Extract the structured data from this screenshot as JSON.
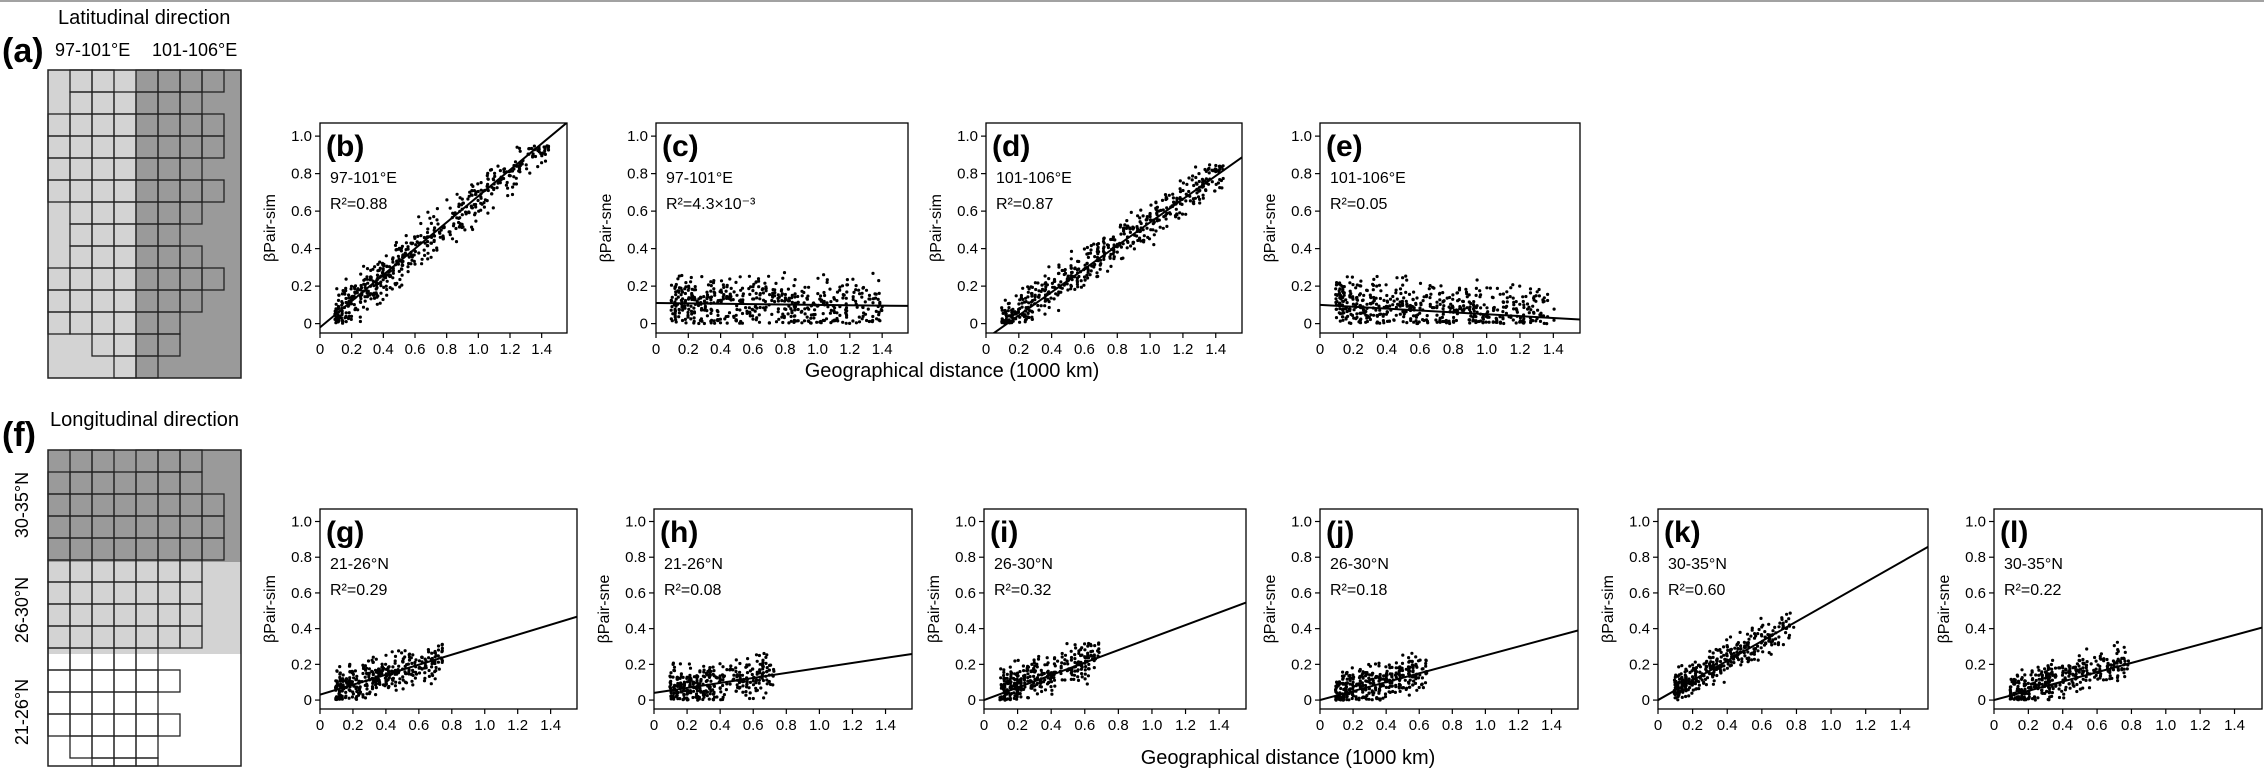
{
  "figure": {
    "xlabel": "Geographical distance (1000 km)",
    "section_a": {
      "letter": "(a)",
      "title": "Latitudinal direction",
      "band_labels": [
        "97-101°E",
        "101-106°E"
      ]
    },
    "section_f": {
      "letter": "(f)",
      "title": "Longitudinal direction",
      "band_labels": [
        "30-35°N",
        "26-30°N",
        "21-26°N"
      ]
    }
  },
  "chart_data": [
    {
      "id": "b",
      "type": "scatter",
      "letter": "(b)",
      "region": "97-101°E",
      "r2": "R²=0.88",
      "ylabel": "βPair-sim",
      "xlim": [
        0,
        1.5
      ],
      "ylim": [
        0,
        1.0
      ],
      "x_ticks": [
        "0",
        "0.2",
        "0.4",
        "0.6",
        "0.8",
        "1.0",
        "1.2",
        "1.4"
      ],
      "y_ticks": [
        "0",
        "0.2",
        "0.4",
        "0.6",
        "0.8",
        "1.0"
      ],
      "fit": {
        "intercept": -0.02,
        "slope": 0.7
      },
      "points": {
        "x_min": 0.1,
        "x_max": 1.45,
        "center_intercept": -0.02,
        "center_slope": 0.69,
        "spread": 0.09,
        "y_min": 0,
        "y_max": 0.95
      }
    },
    {
      "id": "c",
      "type": "scatter",
      "letter": "(c)",
      "region": "97-101°E",
      "r2": "R²=4.3×10⁻³",
      "ylabel": "βPair-sne",
      "xlim": [
        0,
        1.5
      ],
      "ylim": [
        0,
        1.0
      ],
      "x_ticks": [
        "0",
        "0.2",
        "0.4",
        "0.6",
        "0.8",
        "1.0",
        "1.2",
        "1.4"
      ],
      "y_ticks": [
        "0",
        "0.2",
        "0.4",
        "0.6",
        "0.8",
        "1.0"
      ],
      "fit": {
        "intercept": 0.11,
        "slope": -0.01
      },
      "points": {
        "x_min": 0.1,
        "x_max": 1.4,
        "center_intercept": 0.12,
        "center_slope": -0.02,
        "spread": 0.1,
        "y_min": 0,
        "y_max": 0.32
      }
    },
    {
      "id": "d",
      "type": "scatter",
      "letter": "(d)",
      "region": "101-106°E",
      "r2": "R²=0.87",
      "ylabel": "βPair-sim",
      "xlim": [
        0,
        1.5
      ],
      "ylim": [
        0,
        1.0
      ],
      "x_ticks": [
        "0",
        "0.2",
        "0.4",
        "0.6",
        "0.8",
        "1.0",
        "1.2",
        "1.4"
      ],
      "y_ticks": [
        "0",
        "0.2",
        "0.4",
        "0.6",
        "0.8",
        "1.0"
      ],
      "fit": {
        "intercept": -0.08,
        "slope": 0.62
      },
      "points": {
        "x_min": 0.1,
        "x_max": 1.45,
        "center_intercept": -0.06,
        "center_slope": 0.61,
        "spread": 0.08,
        "y_min": 0,
        "y_max": 0.85
      }
    },
    {
      "id": "e",
      "type": "scatter",
      "letter": "(e)",
      "region": "101-106°E",
      "r2": "R²=0.05",
      "ylabel": "βPair-sne",
      "xlim": [
        0,
        1.5
      ],
      "ylim": [
        0,
        1.0
      ],
      "x_ticks": [
        "0",
        "0.2",
        "0.4",
        "0.6",
        "0.8",
        "1.0",
        "1.2",
        "1.4"
      ],
      "y_ticks": [
        "0",
        "0.2",
        "0.4",
        "0.6",
        "0.8",
        "1.0"
      ],
      "fit": {
        "intercept": 0.1,
        "slope": -0.05
      },
      "points": {
        "x_min": 0.1,
        "x_max": 1.4,
        "center_intercept": 0.11,
        "center_slope": -0.04,
        "spread": 0.1,
        "y_min": 0,
        "y_max": 0.32
      }
    },
    {
      "id": "g",
      "type": "scatter",
      "letter": "(g)",
      "region": "21-26°N",
      "r2": "R²=0.29",
      "ylabel": "βPair-sim",
      "xlim": [
        0,
        1.5
      ],
      "ylim": [
        0,
        1.0
      ],
      "x_ticks": [
        "0",
        "0.2",
        "0.4",
        "0.6",
        "0.8",
        "1.0",
        "1.2",
        "1.4"
      ],
      "y_ticks": [
        "0",
        "0.2",
        "0.4",
        "0.6",
        "0.8",
        "1.0"
      ],
      "fit": {
        "intercept": 0.03,
        "slope": 0.28
      },
      "points": {
        "x_min": 0.1,
        "x_max": 0.75,
        "center_intercept": 0.04,
        "center_slope": 0.26,
        "spread": 0.08,
        "y_min": 0,
        "y_max": 0.33
      }
    },
    {
      "id": "h",
      "type": "scatter",
      "letter": "(h)",
      "region": "21-26°N",
      "r2": "R²=0.08",
      "ylabel": "βPair-sne",
      "xlim": [
        0,
        1.5
      ],
      "ylim": [
        0,
        1.0
      ],
      "x_ticks": [
        "0",
        "0.2",
        "0.4",
        "0.6",
        "0.8",
        "1.0",
        "1.2",
        "1.4"
      ],
      "y_ticks": [
        "0",
        "0.2",
        "0.4",
        "0.6",
        "0.8",
        "1.0"
      ],
      "fit": {
        "intercept": 0.04,
        "slope": 0.14
      },
      "points": {
        "x_min": 0.1,
        "x_max": 0.72,
        "center_intercept": 0.05,
        "center_slope": 0.13,
        "spread": 0.09,
        "y_min": 0,
        "y_max": 0.36
      }
    },
    {
      "id": "i",
      "type": "scatter",
      "letter": "(i)",
      "region": "26-30°N",
      "r2": "R²=0.32",
      "ylabel": "βPair-sim",
      "xlim": [
        0,
        1.5
      ],
      "ylim": [
        0,
        1.0
      ],
      "x_ticks": [
        "0",
        "0.2",
        "0.4",
        "0.6",
        "0.8",
        "1.0",
        "1.2",
        "1.4"
      ],
      "y_ticks": [
        "0",
        "0.2",
        "0.4",
        "0.6",
        "0.8",
        "1.0"
      ],
      "fit": {
        "intercept": 0.0,
        "slope": 0.35
      },
      "points": {
        "x_min": 0.1,
        "x_max": 0.68,
        "center_intercept": 0.02,
        "center_slope": 0.34,
        "spread": 0.08,
        "y_min": 0,
        "y_max": 0.32
      }
    },
    {
      "id": "j",
      "type": "scatter",
      "letter": "(j)",
      "region": "26-30°N",
      "r2": "R²=0.18",
      "ylabel": "βPair-sne",
      "xlim": [
        0,
        1.5
      ],
      "ylim": [
        0,
        1.0
      ],
      "x_ticks": [
        "0",
        "0.2",
        "0.4",
        "0.6",
        "0.8",
        "1.0",
        "1.2",
        "1.4"
      ],
      "y_ticks": [
        "0",
        "0.2",
        "0.4",
        "0.6",
        "0.8",
        "1.0"
      ],
      "fit": {
        "intercept": 0.0,
        "slope": 0.25
      },
      "points": {
        "x_min": 0.1,
        "x_max": 0.65,
        "center_intercept": 0.02,
        "center_slope": 0.22,
        "spread": 0.08,
        "y_min": 0,
        "y_max": 0.3
      }
    },
    {
      "id": "k",
      "type": "scatter",
      "letter": "(k)",
      "region": "30-35°N",
      "r2": "R²=0.60",
      "ylabel": "βPair-sim",
      "xlim": [
        0,
        1.5
      ],
      "ylim": [
        0,
        1.0
      ],
      "x_ticks": [
        "0",
        "0.2",
        "0.4",
        "0.6",
        "0.8",
        "1.0",
        "1.2",
        "1.4"
      ],
      "y_ticks": [
        "0",
        "0.2",
        "0.4",
        "0.6",
        "0.8",
        "1.0"
      ],
      "fit": {
        "intercept": 0.0,
        "slope": 0.55
      },
      "points": {
        "x_min": 0.1,
        "x_max": 0.78,
        "center_intercept": 0.02,
        "center_slope": 0.52,
        "spread": 0.07,
        "y_min": 0,
        "y_max": 0.5
      }
    },
    {
      "id": "l",
      "type": "scatter",
      "letter": "(l)",
      "region": "30-35°N",
      "r2": "R²=0.22",
      "ylabel": "βPair-sne",
      "xlim": [
        0,
        1.5
      ],
      "ylim": [
        0,
        1.0
      ],
      "x_ticks": [
        "0",
        "0.2",
        "0.4",
        "0.6",
        "0.8",
        "1.0",
        "1.2",
        "1.4"
      ],
      "y_ticks": [
        "0",
        "0.2",
        "0.4",
        "0.6",
        "0.8",
        "1.0"
      ],
      "fit": {
        "intercept": 0.0,
        "slope": 0.26
      },
      "points": {
        "x_min": 0.1,
        "x_max": 0.78,
        "center_intercept": 0.03,
        "center_slope": 0.24,
        "spread": 0.08,
        "y_min": 0,
        "y_max": 0.33
      }
    }
  ]
}
